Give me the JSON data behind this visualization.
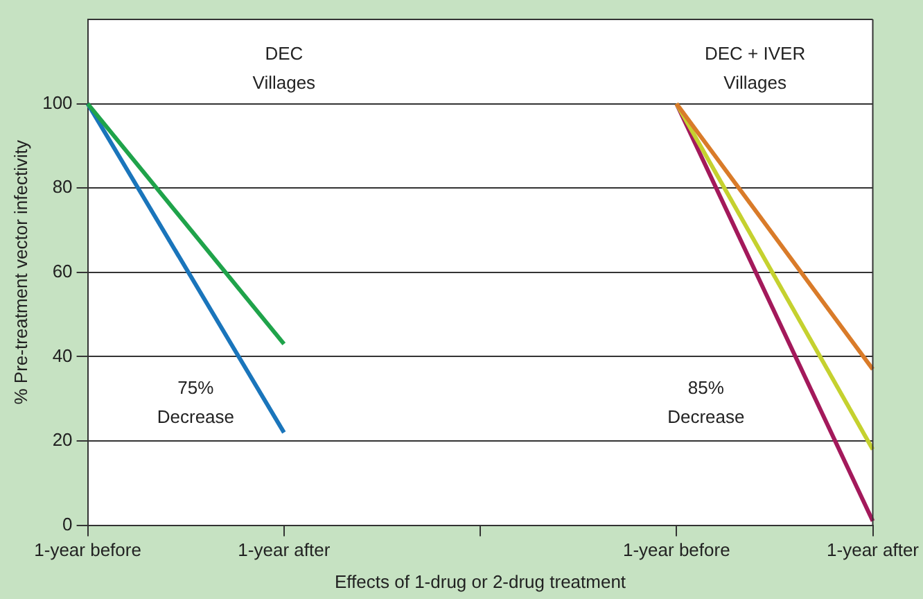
{
  "chart_data": {
    "type": "line",
    "xlabel": "Effects of 1-drug or 2-drug treatment",
    "ylabel": "% Pre-treatment vector infectivity",
    "categories": [
      "1-year before",
      "1-year after",
      null,
      "1-year before",
      "1-year after"
    ],
    "series": [
      {
        "color": "#1fa34a",
        "values": [
          100,
          43,
          null,
          null,
          null
        ]
      },
      {
        "color": "#1a75bb",
        "values": [
          100,
          22,
          null,
          null,
          null
        ]
      },
      {
        "color": "#d97b29",
        "values": [
          null,
          null,
          null,
          100,
          37
        ]
      },
      {
        "color": "#c5d12f",
        "values": [
          null,
          null,
          null,
          100,
          18
        ]
      },
      {
        "color": "#a3195b",
        "values": [
          null,
          null,
          null,
          100,
          1
        ]
      }
    ],
    "ylim": [
      0,
      120
    ],
    "yticks": [
      0,
      20,
      40,
      60,
      80,
      100
    ],
    "grid": "y",
    "marker": "none",
    "line_style": "solid",
    "legend": false,
    "annotations": [
      "DEC\nVillages",
      "DEC + IVER\nVillages",
      "75%\nDecrease",
      "85%\nDecrease"
    ]
  }
}
